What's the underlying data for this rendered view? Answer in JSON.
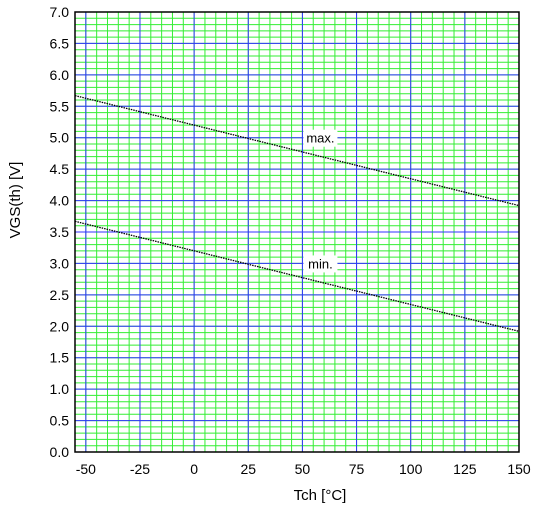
{
  "chart_data": {
    "type": "line",
    "title": "",
    "xlabel": "Tch [°C]",
    "ylabel": "VGS(th) [V]",
    "xlim": [
      -55,
      150
    ],
    "ylim": [
      0,
      7
    ],
    "x_ticks": [
      -50,
      -25,
      0,
      25,
      50,
      75,
      100,
      125,
      150
    ],
    "x_tick_labels": [
      "-50",
      "-25",
      "0",
      "25",
      "50",
      "75",
      "100",
      "125",
      "150"
    ],
    "y_ticks": [
      0,
      0.5,
      1,
      1.5,
      2,
      2.5,
      3,
      3.5,
      4,
      4.5,
      5,
      5.5,
      6,
      6.5,
      7
    ],
    "y_tick_labels": [
      "0.0",
      "0.5",
      "1.0",
      "1.5",
      "2.0",
      "2.5",
      "3.0",
      "3.5",
      "4.0",
      "4.5",
      "5.0",
      "5.5",
      "6.0",
      "6.5",
      "7.0"
    ],
    "grid": {
      "major": true,
      "minor": true,
      "major_color": "#3333ff",
      "minor_color": "#33ee33"
    },
    "series": [
      {
        "name": "max.",
        "x": [
          -55,
          150
        ],
        "y": [
          5.67,
          3.92
        ],
        "color": "#000000",
        "style": "dotted"
      },
      {
        "name": "min.",
        "x": [
          -55,
          150
        ],
        "y": [
          3.67,
          1.92
        ],
        "color": "#000000",
        "style": "dotted"
      }
    ],
    "annotations": [
      {
        "text": "max.",
        "x": 50,
        "y": 5.0
      },
      {
        "text": "min.",
        "x": 50,
        "y": 3.0
      }
    ]
  }
}
